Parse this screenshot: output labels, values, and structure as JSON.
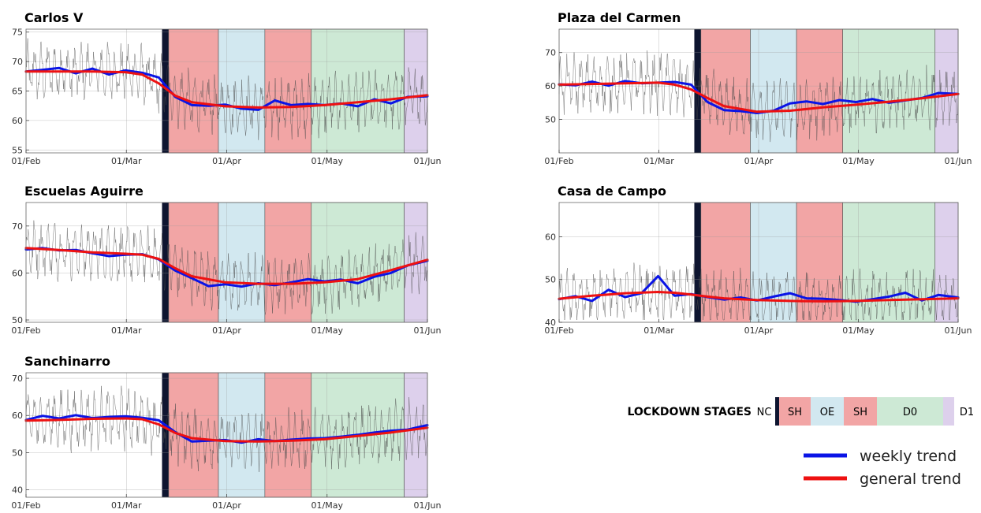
{
  "chart_data": [
    {
      "type": "line",
      "title": "Carlos V",
      "ylim": [
        54.5,
        75.5
      ],
      "yticks": [
        55,
        60,
        65,
        70,
        75
      ],
      "xlim": [
        "2020-02-01",
        "2020-06-01"
      ],
      "xticks": [
        "01/Feb",
        "01/Mar",
        "01/Apr",
        "01/May",
        "01/Jun"
      ],
      "grid": true,
      "series": [
        {
          "name": "weekly trend",
          "x": [
            "2020-02-01",
            "2020-02-06",
            "2020-02-11",
            "2020-02-16",
            "2020-02-21",
            "2020-02-26",
            "2020-03-02",
            "2020-03-07",
            "2020-03-12",
            "2020-03-17",
            "2020-03-22",
            "2020-03-27",
            "2020-04-01",
            "2020-04-06",
            "2020-04-11",
            "2020-04-16",
            "2020-04-21",
            "2020-04-26",
            "2020-05-01",
            "2020-05-06",
            "2020-05-11",
            "2020-05-16",
            "2020-05-21",
            "2020-05-26",
            "2020-06-01"
          ],
          "values": [
            68.3,
            68.6,
            68.9,
            68.0,
            68.8,
            67.8,
            68.5,
            68.1,
            67.3,
            64.0,
            62.6,
            62.5,
            62.7,
            62.0,
            61.8,
            63.4,
            62.6,
            62.8,
            62.6,
            62.9,
            62.4,
            63.6,
            62.9,
            64.0,
            64.1
          ]
        },
        {
          "name": "general trend",
          "x": [
            "2020-02-01",
            "2020-02-11",
            "2020-02-21",
            "2020-03-02",
            "2020-03-07",
            "2020-03-12",
            "2020-03-17",
            "2020-03-22",
            "2020-04-01",
            "2020-04-11",
            "2020-04-21",
            "2020-05-01",
            "2020-05-11",
            "2020-05-21",
            "2020-06-01"
          ],
          "values": [
            68.3,
            68.3,
            68.3,
            68.2,
            67.8,
            66.3,
            64.2,
            63.1,
            62.4,
            62.2,
            62.3,
            62.6,
            63.1,
            63.6,
            64.3
          ]
        }
      ]
    },
    {
      "type": "line",
      "title": "Escuelas Aguirre",
      "ylim": [
        49.5,
        75
      ],
      "yticks": [
        50,
        60,
        70
      ],
      "xlim": [
        "2020-02-01",
        "2020-06-01"
      ],
      "xticks": [
        "01/Feb",
        "01/Mar",
        "01/Apr",
        "01/May",
        "01/Jun"
      ],
      "grid": true,
      "series": [
        {
          "name": "weekly trend",
          "x": [
            "2020-02-01",
            "2020-02-06",
            "2020-02-11",
            "2020-02-16",
            "2020-02-21",
            "2020-02-26",
            "2020-03-02",
            "2020-03-07",
            "2020-03-12",
            "2020-03-17",
            "2020-03-22",
            "2020-03-27",
            "2020-04-01",
            "2020-04-06",
            "2020-04-11",
            "2020-04-16",
            "2020-04-21",
            "2020-04-26",
            "2020-05-01",
            "2020-05-06",
            "2020-05-11",
            "2020-05-16",
            "2020-05-21",
            "2020-05-26",
            "2020-06-01"
          ],
          "values": [
            65.0,
            65.3,
            64.8,
            64.9,
            64.2,
            63.6,
            63.9,
            64.0,
            62.9,
            60.5,
            58.9,
            57.2,
            57.6,
            57.1,
            57.8,
            57.4,
            58.0,
            58.7,
            58.2,
            58.6,
            57.8,
            59.2,
            60.0,
            61.6,
            62.6
          ]
        },
        {
          "name": "general trend",
          "x": [
            "2020-02-01",
            "2020-02-11",
            "2020-02-21",
            "2020-03-02",
            "2020-03-07",
            "2020-03-12",
            "2020-03-17",
            "2020-03-22",
            "2020-04-01",
            "2020-04-11",
            "2020-04-21",
            "2020-05-01",
            "2020-05-11",
            "2020-05-21",
            "2020-06-01"
          ],
          "values": [
            65.3,
            64.9,
            64.4,
            64.1,
            63.9,
            63.0,
            61.0,
            59.3,
            58.0,
            57.7,
            57.7,
            58.0,
            58.7,
            60.6,
            62.8
          ]
        }
      ]
    },
    {
      "type": "line",
      "title": "Sanchinarro",
      "ylim": [
        38,
        71.5
      ],
      "yticks": [
        40,
        50,
        60,
        70
      ],
      "xlim": [
        "2020-02-01",
        "2020-06-01"
      ],
      "xticks": [
        "01/Feb",
        "01/Mar",
        "01/Apr",
        "01/May",
        "01/Jun"
      ],
      "grid": true,
      "series": [
        {
          "name": "weekly trend",
          "x": [
            "2020-02-01",
            "2020-02-06",
            "2020-02-11",
            "2020-02-16",
            "2020-02-21",
            "2020-02-26",
            "2020-03-02",
            "2020-03-07",
            "2020-03-12",
            "2020-03-17",
            "2020-03-22",
            "2020-03-27",
            "2020-04-01",
            "2020-04-06",
            "2020-04-11",
            "2020-04-16",
            "2020-04-21",
            "2020-04-26",
            "2020-05-01",
            "2020-05-06",
            "2020-05-11",
            "2020-05-16",
            "2020-05-21",
            "2020-05-26",
            "2020-06-01"
          ],
          "values": [
            58.8,
            59.9,
            59.2,
            60.1,
            59.3,
            59.6,
            59.8,
            59.4,
            58.7,
            55.5,
            53.0,
            53.2,
            53.4,
            52.7,
            53.6,
            53.1,
            53.5,
            53.8,
            53.9,
            54.3,
            54.8,
            55.4,
            55.9,
            56.2,
            57.4
          ]
        },
        {
          "name": "general trend",
          "x": [
            "2020-02-01",
            "2020-02-11",
            "2020-02-21",
            "2020-03-02",
            "2020-03-07",
            "2020-03-12",
            "2020-03-17",
            "2020-03-22",
            "2020-04-01",
            "2020-04-11",
            "2020-04-21",
            "2020-05-01",
            "2020-05-11",
            "2020-05-21",
            "2020-06-01"
          ],
          "values": [
            58.6,
            58.8,
            59.1,
            59.2,
            59.0,
            57.6,
            55.3,
            53.9,
            53.1,
            53.0,
            53.2,
            53.6,
            54.5,
            55.4,
            56.7
          ]
        }
      ]
    },
    {
      "type": "line",
      "title": "Plaza del Carmen",
      "ylim": [
        40,
        77
      ],
      "yticks": [
        50,
        60,
        70
      ],
      "xlim": [
        "2020-02-01",
        "2020-06-01"
      ],
      "xticks": [
        "01/Feb",
        "01/Mar",
        "01/Apr",
        "01/May",
        "01/Jun"
      ],
      "grid": true,
      "series": [
        {
          "name": "weekly trend",
          "x": [
            "2020-02-01",
            "2020-02-06",
            "2020-02-11",
            "2020-02-16",
            "2020-02-21",
            "2020-02-26",
            "2020-03-02",
            "2020-03-07",
            "2020-03-12",
            "2020-03-17",
            "2020-03-22",
            "2020-03-27",
            "2020-04-01",
            "2020-04-06",
            "2020-04-11",
            "2020-04-16",
            "2020-04-21",
            "2020-04-26",
            "2020-05-01",
            "2020-05-06",
            "2020-05-11",
            "2020-05-16",
            "2020-05-21",
            "2020-05-26",
            "2020-06-01"
          ],
          "values": [
            60.5,
            60.2,
            61.3,
            60.1,
            61.5,
            60.8,
            61.0,
            61.2,
            60.4,
            55.2,
            52.8,
            52.5,
            51.9,
            52.6,
            54.8,
            55.4,
            54.6,
            55.8,
            55.2,
            56.1,
            55.0,
            55.7,
            56.4,
            57.9,
            57.6
          ]
        },
        {
          "name": "general trend",
          "x": [
            "2020-02-01",
            "2020-02-11",
            "2020-02-21",
            "2020-03-02",
            "2020-03-07",
            "2020-03-12",
            "2020-03-17",
            "2020-03-22",
            "2020-04-01",
            "2020-04-11",
            "2020-04-21",
            "2020-05-01",
            "2020-05-11",
            "2020-05-21",
            "2020-06-01"
          ],
          "values": [
            60.4,
            60.6,
            60.8,
            61.0,
            60.4,
            59.0,
            56.4,
            54.0,
            52.3,
            52.6,
            53.6,
            54.4,
            55.3,
            56.3,
            57.6
          ]
        }
      ]
    },
    {
      "type": "line",
      "title": "Casa de Campo",
      "ylim": [
        40,
        68
      ],
      "yticks": [
        40,
        50,
        60
      ],
      "xlim": [
        "2020-02-01",
        "2020-06-01"
      ],
      "xticks": [
        "01/Feb",
        "01/Mar",
        "01/Apr",
        "01/May",
        "01/Jun"
      ],
      "grid": true,
      "series": [
        {
          "name": "weekly trend",
          "x": [
            "2020-02-01",
            "2020-02-06",
            "2020-02-11",
            "2020-02-16",
            "2020-02-21",
            "2020-02-26",
            "2020-03-02",
            "2020-03-07",
            "2020-03-12",
            "2020-03-17",
            "2020-03-22",
            "2020-03-27",
            "2020-04-01",
            "2020-04-06",
            "2020-04-11",
            "2020-04-16",
            "2020-04-21",
            "2020-04-26",
            "2020-05-01",
            "2020-05-06",
            "2020-05-11",
            "2020-05-16",
            "2020-05-21",
            "2020-05-26",
            "2020-06-01"
          ],
          "values": [
            45.4,
            46.1,
            45.0,
            47.6,
            45.9,
            46.8,
            50.8,
            46.2,
            46.6,
            45.9,
            45.3,
            45.8,
            45.1,
            46.0,
            46.8,
            45.6,
            45.5,
            45.2,
            44.8,
            45.4,
            46.0,
            46.9,
            45.1,
            46.4,
            45.8
          ]
        },
        {
          "name": "general trend",
          "x": [
            "2020-02-01",
            "2020-02-11",
            "2020-02-21",
            "2020-03-02",
            "2020-03-07",
            "2020-03-12",
            "2020-03-17",
            "2020-03-22",
            "2020-04-01",
            "2020-04-11",
            "2020-04-21",
            "2020-05-01",
            "2020-05-11",
            "2020-05-21",
            "2020-06-01"
          ],
          "values": [
            45.5,
            46.2,
            46.8,
            47.1,
            46.9,
            46.5,
            46.0,
            45.6,
            45.2,
            45.0,
            44.9,
            45.0,
            45.2,
            45.4,
            45.6
          ]
        }
      ]
    }
  ],
  "stages": [
    {
      "label": "NC",
      "start": "2020-03-13",
      "end": "2020-03-15",
      "color": "#0e1530"
    },
    {
      "label": "SH",
      "start": "2020-03-15",
      "end": "2020-03-30",
      "color": "#f2a5a5"
    },
    {
      "label": "OE",
      "start": "2020-03-30",
      "end": "2020-04-13",
      "color": "#d2e8f0"
    },
    {
      "label": "SH",
      "start": "2020-04-13",
      "end": "2020-04-27",
      "color": "#f2a5a5"
    },
    {
      "label": "D0",
      "start": "2020-04-27",
      "end": "2020-05-25",
      "color": "#cde9d5"
    },
    {
      "label": "D1",
      "start": "2020-05-25",
      "end": "2020-06-01",
      "color": "#ddd0ec"
    }
  ],
  "stage_legend": {
    "heading": "LOCKDOWN STAGES"
  },
  "trend_legend": {
    "items": [
      {
        "label": "weekly trend",
        "color": "#0a14e6"
      },
      {
        "label": "general trend",
        "color": "#ee1111"
      }
    ]
  }
}
